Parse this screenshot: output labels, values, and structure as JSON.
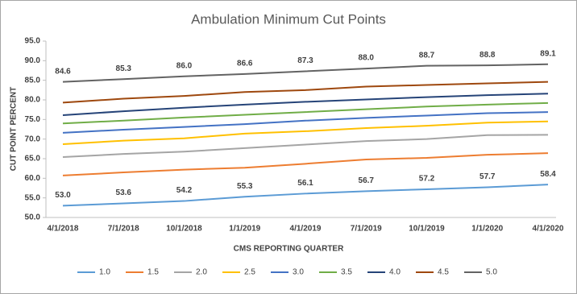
{
  "chart_data": {
    "type": "line",
    "title": "Ambulation Minimum Cut Points",
    "x_label": "CMS REPORTING QUARTER",
    "y_label": "CUT POINT PERCENT",
    "categories": [
      "4/1/2018",
      "7/1/2018",
      "10/1/2018",
      "1/1/2019",
      "4/1/2019",
      "7/1/2019",
      "10/1/2019",
      "1/1/2020",
      "4/1/2020"
    ],
    "ylim": [
      50,
      95
    ],
    "yticks": [
      {
        "value": 50,
        "label": "50.0"
      },
      {
        "value": 55,
        "label": "55.0"
      },
      {
        "value": 60,
        "label": "60.0"
      },
      {
        "value": 65,
        "label": "65.0"
      },
      {
        "value": 70,
        "label": "70.0"
      },
      {
        "value": 75,
        "label": "75.0"
      },
      {
        "value": 80,
        "label": "80.0"
      },
      {
        "value": 85,
        "label": "85.0"
      },
      {
        "value": 90,
        "label": "90.0"
      },
      {
        "value": 95,
        "label": "95.0"
      }
    ],
    "legend": "bottom",
    "series": [
      {
        "name": "1.0",
        "color": "#5b9bd5",
        "values": [
          53,
          53.6,
          54.2,
          55.3,
          56.1,
          56.7,
          57.2,
          57.7,
          58.4
        ],
        "value_labels": [
          "53.0",
          "53.6",
          "54.2",
          "55.3",
          "56.1",
          "56.7",
          "57.2",
          "57.7",
          "58.4"
        ]
      },
      {
        "name": "1.5",
        "color": "#ed7d31",
        "values": [
          60.7,
          61.5,
          62.2,
          62.7,
          63.7,
          64.8,
          65.2,
          66.0,
          66.4
        ]
      },
      {
        "name": "2.0",
        "color": "#a5a5a5",
        "values": [
          65.4,
          66.2,
          66.8,
          67.7,
          68.6,
          69.5,
          70.0,
          71.0,
          71.1
        ]
      },
      {
        "name": "2.5",
        "color": "#ffc000",
        "values": [
          68.7,
          69.6,
          70.2,
          71.4,
          72.0,
          72.8,
          73.4,
          74.2,
          74.5
        ]
      },
      {
        "name": "3.0",
        "color": "#4472c4",
        "values": [
          71.6,
          72.4,
          73.1,
          73.8,
          74.7,
          75.4,
          76.0,
          76.6,
          76.9
        ]
      },
      {
        "name": "3.5",
        "color": "#70ad47",
        "values": [
          74.0,
          74.7,
          75.5,
          76.2,
          76.9,
          77.6,
          78.3,
          78.8,
          79.2
        ]
      },
      {
        "name": "4.0",
        "color": "#264478",
        "values": [
          76.1,
          77.1,
          78.0,
          78.8,
          79.5,
          80.1,
          80.7,
          81.2,
          81.6
        ]
      },
      {
        "name": "4.5",
        "color": "#9e480e",
        "values": [
          79.3,
          80.3,
          81.0,
          82.0,
          82.5,
          83.4,
          83.8,
          84.2,
          84.6
        ]
      },
      {
        "name": "5.0",
        "color": "#636363",
        "values": [
          84.6,
          85.3,
          86,
          86.6,
          87.3,
          88,
          88.7,
          88.8,
          89.1
        ],
        "value_labels": [
          "84.6",
          "85.3",
          "86.0",
          "86.6",
          "87.3",
          "88.0",
          "88.7",
          "88.8",
          "89.1"
        ]
      }
    ]
  }
}
